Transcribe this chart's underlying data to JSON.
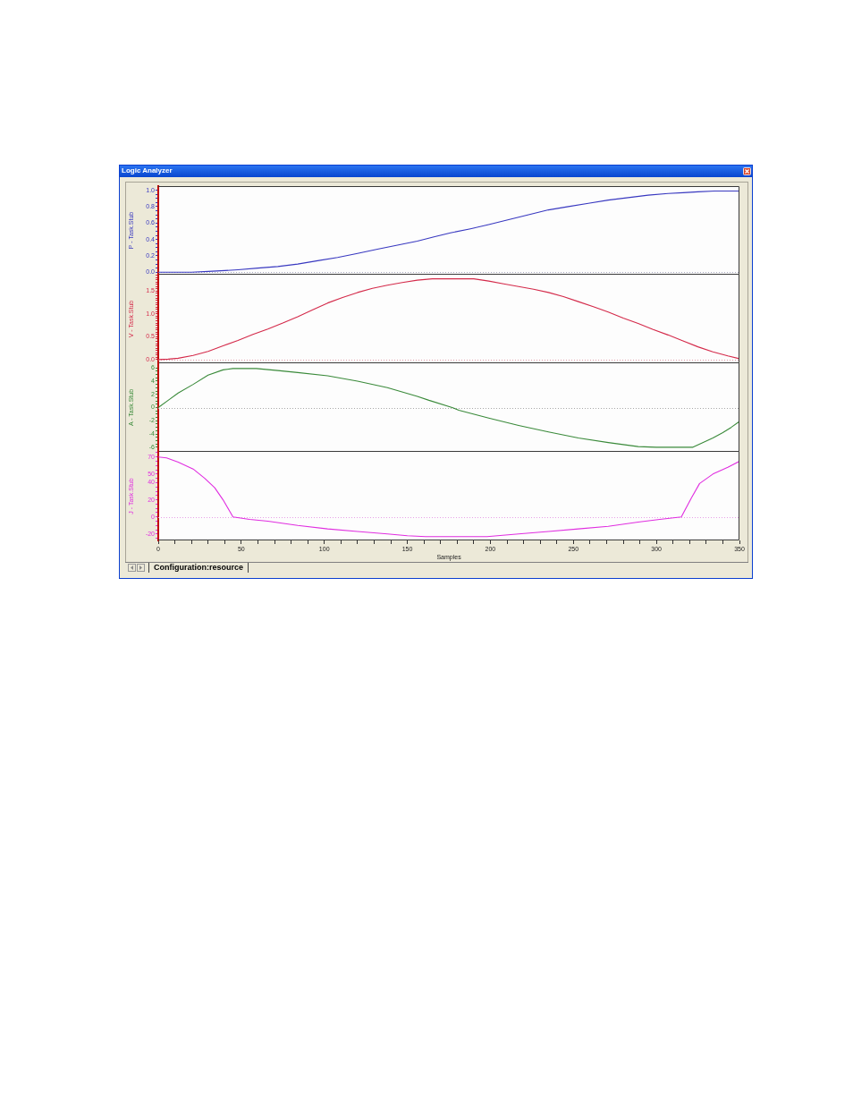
{
  "chart_data": [
    {
      "type": "line",
      "title": "Logic Analyzer",
      "ylabel": "P - Task.Stub",
      "x": [
        0,
        20,
        30,
        40,
        48,
        60,
        72,
        84,
        96,
        108,
        120,
        132,
        144,
        156,
        166,
        176,
        188,
        199,
        211,
        223,
        235,
        247,
        259,
        271,
        283,
        295,
        307,
        316,
        325,
        335,
        350
      ],
      "xlim": [
        0,
        350
      ],
      "ylim": [
        -0.03,
        1.05
      ],
      "yticks": [
        {
          "value": 0,
          "label": "0.0"
        },
        {
          "value": 0.05,
          "label": null
        },
        {
          "value": 0.1,
          "label": null
        },
        {
          "value": 0.15,
          "label": null
        },
        0.2,
        {
          "value": 0.25,
          "label": null
        },
        {
          "value": 0.3,
          "label": null
        },
        {
          "value": 0.35,
          "label": null
        },
        0.4,
        {
          "value": 0.45,
          "label": null
        },
        {
          "value": 0.5,
          "label": null
        },
        {
          "value": 0.55,
          "label": null
        },
        0.6,
        {
          "value": 0.65,
          "label": null
        },
        {
          "value": 0.7,
          "label": null
        },
        {
          "value": 0.75,
          "label": null
        },
        0.8,
        {
          "value": 0.85,
          "label": null
        },
        {
          "value": 0.9,
          "label": null
        },
        {
          "value": 0.95,
          "label": null
        },
        {
          "value": 1,
          "label": "1.0"
        }
      ],
      "tick_labels": "y",
      "ref_lines": [
        {
          "axis": "y",
          "value": 0,
          "color": "#a8a8c0",
          "line_style": "dotted"
        }
      ],
      "series": [
        {
          "color": "#3838c0",
          "values": [
            0,
            0,
            0.01,
            0.02,
            0.03,
            0.05,
            0.07,
            0.1,
            0.14,
            0.18,
            0.23,
            0.28,
            0.33,
            0.38,
            0.43,
            0.48,
            0.53,
            0.58,
            0.64,
            0.7,
            0.76,
            0.8,
            0.84,
            0.88,
            0.91,
            0.94,
            0.96,
            0.97,
            0.98,
            0.99,
            0.99
          ]
        }
      ]
    },
    {
      "type": "line",
      "ylabel": "V - Task.Stub",
      "x": [
        0,
        6,
        12,
        21,
        30,
        39,
        48,
        57,
        66,
        75,
        84,
        93,
        102,
        111,
        120,
        129,
        138,
        147,
        156,
        165,
        190,
        199,
        208,
        217,
        226,
        235,
        244,
        253,
        262,
        271,
        280,
        289,
        298,
        307,
        316,
        325,
        334,
        343,
        350
      ],
      "xlim": [
        0,
        350
      ],
      "ylim": [
        -0.08,
        1.86
      ],
      "yticks": [
        {
          "value": 0,
          "label": "0.0"
        },
        {
          "value": 0.05,
          "label": null
        },
        {
          "value": 0.1,
          "label": null
        },
        {
          "value": 0.15,
          "label": null
        },
        {
          "value": 0.2,
          "label": null
        },
        {
          "value": 0.25,
          "label": null
        },
        {
          "value": 0.3,
          "label": null
        },
        {
          "value": 0.35,
          "label": null
        },
        {
          "value": 0.4,
          "label": null
        },
        {
          "value": 0.45,
          "label": null
        },
        0.5,
        {
          "value": 0.55,
          "label": null
        },
        {
          "value": 0.6,
          "label": null
        },
        {
          "value": 0.65,
          "label": null
        },
        {
          "value": 0.7,
          "label": null
        },
        {
          "value": 0.75,
          "label": null
        },
        {
          "value": 0.8,
          "label": null
        },
        {
          "value": 0.85,
          "label": null
        },
        {
          "value": 0.9,
          "label": null
        },
        {
          "value": 0.95,
          "label": null
        },
        {
          "value": 1,
          "label": "1.0"
        },
        {
          "value": 1.05,
          "label": null
        },
        {
          "value": 1.1,
          "label": null
        },
        {
          "value": 1.15,
          "label": null
        },
        {
          "value": 1.2,
          "label": null
        },
        {
          "value": 1.25,
          "label": null
        },
        {
          "value": 1.3,
          "label": null
        },
        {
          "value": 1.35,
          "label": null
        },
        {
          "value": 1.4,
          "label": null
        },
        {
          "value": 1.45,
          "label": null
        },
        1.5,
        {
          "value": 1.55,
          "label": null
        },
        {
          "value": 1.6,
          "label": null
        },
        {
          "value": 1.65,
          "label": null
        },
        {
          "value": 1.7,
          "label": null
        },
        {
          "value": 1.75,
          "label": null
        },
        {
          "value": 1.8,
          "label": null
        },
        {
          "value": 1.85,
          "label": null
        }
      ],
      "tick_labels": "y",
      "ref_lines": [
        {
          "axis": "y",
          "value": 0,
          "color": "#e09aa6",
          "line_style": "dotted"
        }
      ],
      "series": [
        {
          "color": "#d42a4a",
          "values": [
            0,
            0.01,
            0.03,
            0.09,
            0.18,
            0.3,
            0.42,
            0.55,
            0.67,
            0.8,
            0.94,
            1.09,
            1.24,
            1.36,
            1.47,
            1.56,
            1.63,
            1.69,
            1.74,
            1.77,
            1.77,
            1.72,
            1.66,
            1.6,
            1.54,
            1.47,
            1.38,
            1.27,
            1.16,
            1.04,
            0.91,
            0.79,
            0.66,
            0.54,
            0.41,
            0.28,
            0.17,
            0.08,
            0.02
          ]
        }
      ]
    },
    {
      "type": "line",
      "ylabel": "A - Task.Stub",
      "x": [
        0,
        6,
        12,
        21,
        30,
        39,
        45,
        59,
        72,
        84,
        102,
        120,
        138,
        156,
        163,
        177,
        181,
        199,
        217,
        235,
        253,
        271,
        289,
        300,
        322,
        327,
        334,
        340,
        345,
        350
      ],
      "xlim": [
        0,
        350
      ],
      "ylim": [
        -6.7,
        6.7
      ],
      "yticks": [
        -6,
        {
          "value": -5.5,
          "label": null
        },
        {
          "value": -5,
          "label": null
        },
        {
          "value": -4.5,
          "label": null
        },
        -4,
        {
          "value": -3.5,
          "label": null
        },
        {
          "value": -3,
          "label": null
        },
        {
          "value": -2.5,
          "label": null
        },
        -2,
        {
          "value": -1.5,
          "label": null
        },
        {
          "value": -1,
          "label": null
        },
        {
          "value": -0.5,
          "label": null
        },
        0,
        {
          "value": 0.5,
          "label": null
        },
        {
          "value": 1,
          "label": null
        },
        {
          "value": 1.5,
          "label": null
        },
        2,
        {
          "value": 2.5,
          "label": null
        },
        {
          "value": 3,
          "label": null
        },
        {
          "value": 3.5,
          "label": null
        },
        4,
        {
          "value": 4.5,
          "label": null
        },
        {
          "value": 5,
          "label": null
        },
        {
          "value": 5.5,
          "label": null
        },
        6
      ],
      "tick_labels": "y",
      "ref_lines": [
        {
          "axis": "y",
          "value": 0,
          "color": "#a8a8a8",
          "line_style": "dotted"
        }
      ],
      "series": [
        {
          "color": "#3a8a3a",
          "values": [
            0,
            1.1,
            2.2,
            3.5,
            4.9,
            5.7,
            5.9,
            5.9,
            5.6,
            5.3,
            4.8,
            4,
            3,
            1.7,
            1.1,
            0,
            -0.4,
            -1.6,
            -2.7,
            -3.7,
            -4.6,
            -5.3,
            -5.9,
            -6,
            -6,
            -5.4,
            -4.6,
            -3.8,
            -3,
            -2.1
          ]
        }
      ]
    },
    {
      "type": "line",
      "ylabel": "J - Task.Stub",
      "xlabel": "Samples",
      "annotations": [
        "Configuration:resource"
      ],
      "x": [
        0,
        5,
        12,
        21,
        28,
        34,
        39,
        45,
        55,
        66,
        84,
        102,
        120,
        138,
        150,
        161,
        198,
        217,
        235,
        253,
        271,
        289,
        302,
        315,
        321,
        326,
        334,
        343,
        350
      ],
      "xlim": [
        0,
        350
      ],
      "xticks": [
        0,
        {
          "value": 10,
          "label": null
        },
        {
          "value": 20,
          "label": null
        },
        {
          "value": 30,
          "label": null
        },
        {
          "value": 40,
          "label": null
        },
        50,
        {
          "value": 60,
          "label": null
        },
        {
          "value": 70,
          "label": null
        },
        {
          "value": 80,
          "label": null
        },
        {
          "value": 90,
          "label": null
        },
        100,
        {
          "value": 110,
          "label": null
        },
        {
          "value": 120,
          "label": null
        },
        {
          "value": 130,
          "label": null
        },
        {
          "value": 140,
          "label": null
        },
        150,
        {
          "value": 160,
          "label": null
        },
        {
          "value": 170,
          "label": null
        },
        {
          "value": 180,
          "label": null
        },
        {
          "value": 190,
          "label": null
        },
        200,
        {
          "value": 210,
          "label": null
        },
        {
          "value": 220,
          "label": null
        },
        {
          "value": 230,
          "label": null
        },
        {
          "value": 240,
          "label": null
        },
        250,
        {
          "value": 260,
          "label": null
        },
        {
          "value": 270,
          "label": null
        },
        {
          "value": 280,
          "label": null
        },
        {
          "value": 290,
          "label": null
        },
        300,
        {
          "value": 310,
          "label": null
        },
        {
          "value": 320,
          "label": null
        },
        {
          "value": 330,
          "label": null
        },
        {
          "value": 340,
          "label": null
        },
        350
      ],
      "ylim": [
        -27.5,
        76
      ],
      "yticks": [
        {
          "value": -25,
          "label": null
        },
        -20,
        {
          "value": -15,
          "label": null
        },
        {
          "value": -10,
          "label": null
        },
        {
          "value": -5,
          "label": null
        },
        0,
        {
          "value": 5,
          "label": null
        },
        {
          "value": 10,
          "label": null
        },
        {
          "value": 15,
          "label": null
        },
        20,
        {
          "value": 25,
          "label": null
        },
        {
          "value": 30,
          "label": null
        },
        {
          "value": 35,
          "label": null
        },
        40,
        {
          "value": 45,
          "label": null
        },
        50,
        {
          "value": 55,
          "label": null
        },
        {
          "value": 60,
          "label": null
        },
        {
          "value": 65,
          "label": null
        },
        70,
        {
          "value": 75,
          "label": null
        }
      ],
      "ref_lines": [
        {
          "axis": "y",
          "value": 0,
          "color": "#e6a0e6",
          "line_style": "dotted"
        }
      ],
      "series": [
        {
          "color": "#e02ee0",
          "values": [
            70,
            69,
            64,
            56,
            45,
            34,
            20,
            0,
            -3,
            -5,
            -10,
            -14,
            -17,
            -20,
            -22,
            -23,
            -23,
            -20,
            -17,
            -14,
            -11,
            -6,
            -3,
            0,
            22,
            39,
            50,
            58,
            65
          ]
        }
      ]
    }
  ]
}
